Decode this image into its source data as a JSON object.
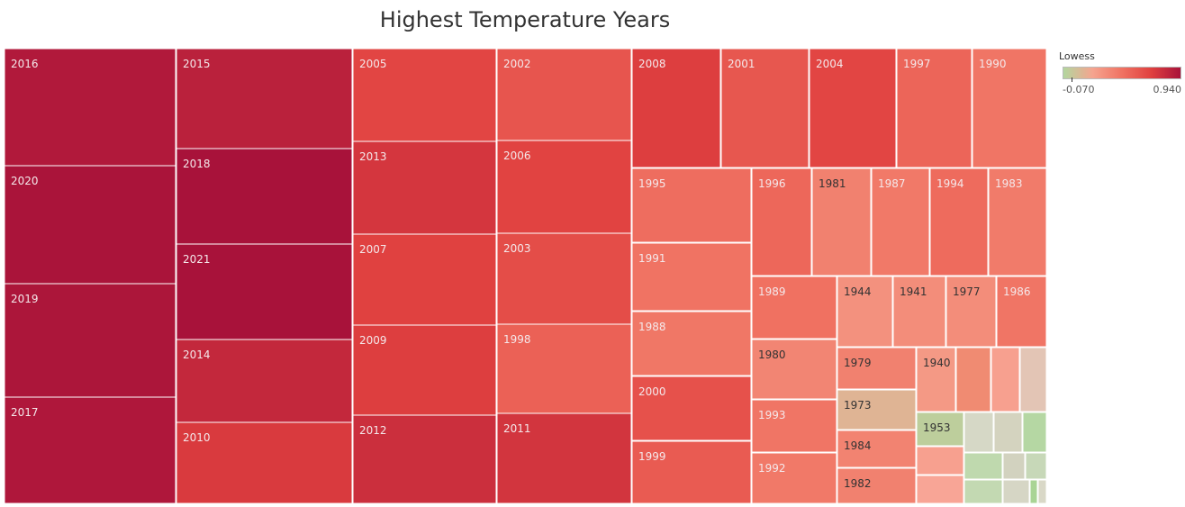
{
  "title": "Highest Temperature Years",
  "legend": {
    "title": "Lowess",
    "min_label": "-0.070",
    "max_label": "0.940",
    "min": -0.07,
    "max": 0.94,
    "colors": [
      "#b2d69e",
      "#f5a48f",
      "#f07262",
      "#e0403f",
      "#a8123a"
    ]
  },
  "chart_data": {
    "type": "treemap",
    "title": "Highest Temperature Years",
    "color_by": "Lowess",
    "color_range": [
      -0.07,
      0.94
    ],
    "columns": [
      [
        {
          "year": "2016",
          "value": 0.9
        },
        {
          "year": "2020",
          "value": 0.93
        },
        {
          "year": "2019",
          "value": 0.92
        },
        {
          "year": "2017",
          "value": 0.91
        }
      ],
      [
        {
          "year": "2015",
          "value": 0.86
        },
        {
          "year": "2018",
          "value": 0.94
        },
        {
          "year": "2021",
          "value": 0.94
        },
        {
          "year": "2014",
          "value": 0.82
        },
        {
          "year": "2010",
          "value": 0.72
        }
      ],
      [
        {
          "year": "2005",
          "value": 0.66
        },
        {
          "year": "2013",
          "value": 0.74
        },
        {
          "year": "2007",
          "value": 0.68
        },
        {
          "year": "2009",
          "value": 0.7
        },
        {
          "year": "2012",
          "value": 0.78
        }
      ],
      [
        {
          "year": "2002",
          "value": 0.58
        },
        {
          "year": "2006",
          "value": 0.67
        },
        {
          "year": "2003",
          "value": 0.62
        },
        {
          "year": "1998",
          "value": 0.52
        },
        {
          "year": "2011",
          "value": 0.75
        }
      ],
      [
        {
          "year": "2008",
          "value": 0.7
        },
        {
          "year": "2001",
          "value": 0.57
        },
        {
          "year": "2004",
          "value": 0.66
        },
        {
          "year": "1997",
          "value": 0.5
        },
        {
          "year": "1990",
          "value": 0.42
        },
        {
          "year": "1995",
          "value": 0.46
        },
        {
          "year": "1991",
          "value": 0.43
        },
        {
          "year": "1988",
          "value": 0.41
        },
        {
          "year": "2000",
          "value": 0.6
        },
        {
          "year": "1999",
          "value": 0.55
        },
        {
          "year": "1996",
          "value": 0.49
        },
        {
          "year": "1981",
          "value": 0.36
        },
        {
          "year": "1987",
          "value": 0.4
        },
        {
          "year": "1994",
          "value": 0.47
        },
        {
          "year": "1983",
          "value": 0.39
        },
        {
          "year": "1989",
          "value": 0.44
        },
        {
          "year": "1980",
          "value": 0.34
        },
        {
          "year": "1993",
          "value": 0.42
        },
        {
          "year": "1992",
          "value": 0.4
        },
        {
          "year": "1944",
          "value": 0.28
        },
        {
          "year": "1941",
          "value": 0.3
        },
        {
          "year": "1977",
          "value": 0.3
        },
        {
          "year": "1986",
          "value": 0.42
        },
        {
          "year": "1979",
          "value": 0.36
        },
        {
          "year": "1973",
          "value": 0.1
        },
        {
          "year": "1984",
          "value": 0.35
        },
        {
          "year": "1982",
          "value": 0.36
        },
        {
          "year": "1940",
          "value": 0.24
        },
        {
          "year": "1953",
          "value": -0.03
        }
      ]
    ]
  }
}
